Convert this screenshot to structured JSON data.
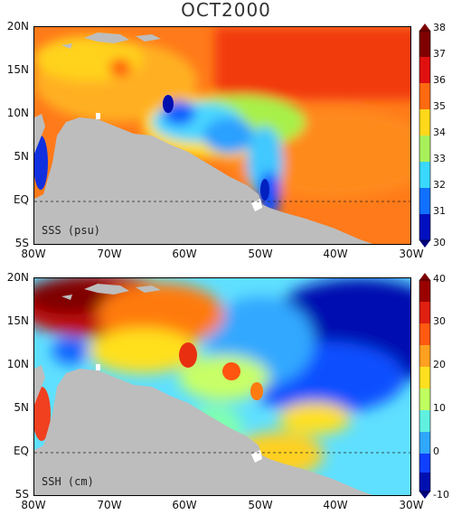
{
  "title": "OCT2000",
  "lat_labels": [
    "20N",
    "15N",
    "10N",
    "5N",
    "EQ",
    "5S"
  ],
  "lon_labels": [
    "80W",
    "70W",
    "60W",
    "50W",
    "40W",
    "30W"
  ],
  "panels": [
    {
      "label": "SSS (psu)",
      "colorbar": [
        "38",
        "37",
        "36",
        "35",
        "34",
        "33",
        "32",
        "31",
        "30"
      ]
    },
    {
      "label": "SSH (cm)",
      "colorbar": [
        "40",
        "30",
        "20",
        "10",
        "0",
        "-10"
      ]
    }
  ],
  "colors": {
    "land": "#bdbdbd",
    "scale": [
      "#00007f",
      "#0000ff",
      "#0066ff",
      "#00ccff",
      "#66ffcc",
      "#ccff66",
      "#ffee00",
      "#ff9900",
      "#ff3300",
      "#aa0000",
      "#7f0000"
    ]
  }
}
